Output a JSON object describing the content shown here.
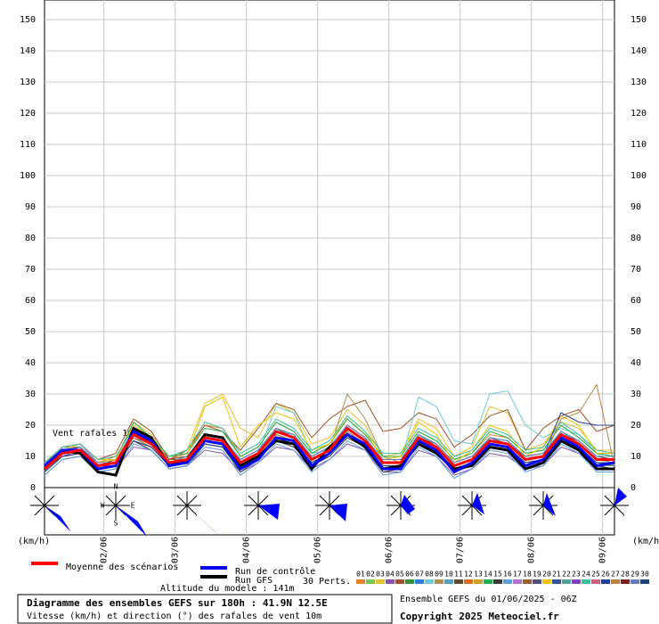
{
  "chart_data": {
    "type": "line",
    "title": "Diagramme des ensembles GEFS sur 180h : 41.9N 12.5E",
    "subtitle": "Vitesse (km/h) et direction (°) des rafales de vent 10m",
    "altitude": "Altitude du modele : 141m",
    "run": "Ensemble GEFS du 01/06/2025 - 06Z",
    "copyright": "Copyright 2025 Meteociel.fr",
    "annotation": "Vent rafales 10m",
    "unit": "(km/h)",
    "perts_label": "30 Perts.",
    "compass": [
      "N",
      "E",
      "S",
      "W"
    ],
    "xlim": [
      0,
      192
    ],
    "xticks": [
      {
        "value": 20,
        "label": "02/06"
      },
      {
        "value": 44,
        "label": "03/06"
      },
      {
        "value": 68,
        "label": "04/06"
      },
      {
        "value": 92,
        "label": "05/06"
      },
      {
        "value": 116,
        "label": "06/06"
      },
      {
        "value": 140,
        "label": "07/06"
      },
      {
        "value": 164,
        "label": "08/06"
      },
      {
        "value": 188,
        "label": "09/06"
      }
    ],
    "ylim": [
      0,
      150
    ],
    "yticks": [
      0,
      10,
      20,
      30,
      40,
      50,
      60,
      70,
      80,
      90,
      100,
      110,
      120,
      130,
      140,
      150
    ],
    "grid": true,
    "x": [
      0,
      6,
      12,
      18,
      24,
      30,
      36,
      42,
      48,
      54,
      60,
      66,
      72,
      78,
      84,
      90,
      96,
      102,
      108,
      114,
      120,
      126,
      132,
      138,
      144,
      150,
      156,
      162,
      168,
      174,
      180,
      186,
      192
    ],
    "perturbations": [
      {
        "name": "01",
        "color": "#e8802c",
        "values": [
          7,
          13,
          13,
          8,
          10,
          19,
          16,
          9,
          11,
          20,
          19,
          10,
          13,
          21,
          18,
          11,
          14,
          22,
          17,
          10,
          10,
          18,
          15,
          9,
          11,
          17,
          16,
          11,
          12,
          20,
          16,
          11,
          11
        ]
      },
      {
        "name": "02",
        "color": "#7cc35a",
        "values": [
          5,
          10,
          11,
          6,
          7,
          15,
          13,
          7,
          8,
          14,
          13,
          6,
          9,
          15,
          14,
          8,
          10,
          16,
          13,
          6,
          7,
          14,
          11,
          5,
          7,
          13,
          12,
          8,
          8,
          15,
          12,
          7,
          7
        ]
      },
      {
        "name": "03",
        "color": "#e4c22c",
        "values": [
          6,
          12,
          14,
          9,
          9,
          21,
          17,
          10,
          12,
          27,
          30,
          19,
          16,
          27,
          24,
          14,
          16,
          25,
          20,
          10,
          11,
          22,
          19,
          10,
          13,
          26,
          24,
          12,
          14,
          21,
          19,
          12,
          12
        ]
      },
      {
        "name": "04",
        "color": "#8a53b0",
        "values": [
          4,
          9,
          10,
          5,
          6,
          13,
          12,
          6,
          7,
          12,
          11,
          5,
          8,
          13,
          12,
          6,
          9,
          14,
          12,
          5,
          5,
          12,
          10,
          4,
          6,
          11,
          10,
          6,
          7,
          13,
          11,
          6,
          6
        ]
      },
      {
        "name": "05",
        "color": "#a0522d",
        "values": [
          8,
          13,
          14,
          9,
          11,
          22,
          18,
          9,
          12,
          20,
          18,
          12,
          19,
          27,
          25,
          16,
          22,
          26,
          28,
          18,
          19,
          24,
          22,
          13,
          17,
          23,
          25,
          12,
          19,
          23,
          25,
          18,
          20
        ]
      },
      {
        "name": "06",
        "color": "#3a8d3a",
        "values": [
          6,
          11,
          13,
          7,
          8,
          18,
          15,
          8,
          10,
          17,
          16,
          9,
          12,
          19,
          17,
          10,
          13,
          20,
          16,
          9,
          9,
          17,
          14,
          8,
          10,
          16,
          15,
          10,
          11,
          18,
          15,
          10,
          10
        ]
      },
      {
        "name": "07",
        "color": "#2d7fe0",
        "values": [
          5,
          12,
          12,
          7,
          9,
          16,
          13,
          7,
          8,
          14,
          13,
          6,
          10,
          17,
          15,
          8,
          11,
          18,
          14,
          7,
          7,
          15,
          12,
          6,
          8,
          14,
          13,
          8,
          9,
          16,
          13,
          8,
          8
        ]
      },
      {
        "name": "08",
        "color": "#6ec9d8",
        "values": [
          7,
          13,
          12,
          6,
          8,
          17,
          14,
          8,
          9,
          16,
          15,
          7,
          11,
          26,
          24,
          11,
          12,
          20,
          16,
          8,
          8,
          29,
          26,
          15,
          14,
          30,
          31,
          20,
          16,
          19,
          17,
          11,
          7
        ]
      },
      {
        "name": "09",
        "color": "#b38e50",
        "values": [
          6,
          10,
          11,
          7,
          7,
          16,
          14,
          8,
          9,
          15,
          14,
          8,
          10,
          16,
          15,
          9,
          12,
          30,
          22,
          10,
          8,
          15,
          13,
          7,
          9,
          15,
          14,
          9,
          10,
          16,
          14,
          9,
          8
        ]
      },
      {
        "name": "10",
        "color": "#4f9fbf",
        "values": [
          5,
          11,
          12,
          8,
          8,
          17,
          15,
          7,
          9,
          17,
          16,
          8,
          11,
          18,
          17,
          9,
          12,
          19,
          15,
          8,
          8,
          17,
          13,
          7,
          9,
          16,
          15,
          9,
          10,
          18,
          14,
          9,
          9
        ]
      },
      {
        "name": "11",
        "color": "#5e4a2e",
        "values": [
          7,
          12,
          13,
          7,
          9,
          18,
          15,
          9,
          10,
          16,
          15,
          9,
          12,
          19,
          16,
          10,
          13,
          20,
          16,
          9,
          9,
          16,
          14,
          8,
          10,
          16,
          14,
          10,
          11,
          17,
          15,
          10,
          9
        ]
      },
      {
        "name": "12",
        "color": "#e86a1c",
        "values": [
          6,
          11,
          12,
          6,
          7,
          16,
          13,
          7,
          8,
          15,
          14,
          7,
          10,
          17,
          15,
          8,
          11,
          18,
          14,
          7,
          7,
          15,
          12,
          6,
          8,
          14,
          13,
          8,
          9,
          16,
          13,
          8,
          8
        ]
      },
      {
        "name": "13",
        "color": "#c9a227",
        "values": [
          5,
          12,
          12,
          7,
          8,
          17,
          14,
          8,
          9,
          16,
          15,
          8,
          11,
          18,
          16,
          9,
          12,
          19,
          15,
          8,
          8,
          16,
          13,
          7,
          9,
          15,
          14,
          9,
          10,
          17,
          14,
          9,
          9
        ]
      },
      {
        "name": "14",
        "color": "#20b050",
        "values": [
          8,
          12,
          13,
          8,
          9,
          21,
          16,
          10,
          11,
          19,
          18,
          10,
          13,
          21,
          18,
          11,
          14,
          22,
          17,
          10,
          10,
          18,
          15,
          9,
          11,
          18,
          16,
          11,
          12,
          20,
          16,
          11,
          10
        ]
      },
      {
        "name": "15",
        "color": "#3a3a3a",
        "values": [
          6,
          10,
          11,
          6,
          7,
          15,
          12,
          6,
          7,
          14,
          13,
          5,
          9,
          15,
          13,
          7,
          10,
          16,
          13,
          5,
          6,
          14,
          11,
          5,
          7,
          13,
          12,
          6,
          8,
          15,
          12,
          7,
          6
        ]
      },
      {
        "name": "16",
        "color": "#5aa0e0",
        "values": [
          4,
          9,
          10,
          5,
          6,
          14,
          12,
          6,
          7,
          13,
          12,
          4,
          8,
          14,
          12,
          5,
          9,
          15,
          12,
          4,
          5,
          13,
          10,
          3,
          6,
          12,
          11,
          5,
          7,
          14,
          11,
          5,
          5
        ]
      },
      {
        "name": "17",
        "color": "#b070d0",
        "values": [
          6,
          13,
          14,
          8,
          9,
          18,
          15,
          8,
          10,
          17,
          16,
          9,
          12,
          19,
          17,
          10,
          13,
          20,
          16,
          9,
          9,
          17,
          14,
          8,
          10,
          16,
          15,
          10,
          11,
          18,
          15,
          10,
          10
        ]
      },
      {
        "name": "18",
        "color": "#9c5c2c",
        "values": [
          7,
          12,
          12,
          7,
          8,
          17,
          15,
          9,
          9,
          16,
          15,
          8,
          11,
          18,
          16,
          9,
          12,
          19,
          15,
          8,
          8,
          16,
          13,
          7,
          9,
          15,
          14,
          9,
          10,
          17,
          14,
          9,
          9
        ]
      },
      {
        "name": "19",
        "color": "#505080",
        "values": [
          5,
          11,
          11,
          6,
          7,
          16,
          13,
          7,
          8,
          15,
          14,
          7,
          10,
          17,
          15,
          8,
          11,
          18,
          14,
          7,
          7,
          15,
          12,
          6,
          8,
          14,
          13,
          8,
          9,
          16,
          13,
          8,
          7
        ]
      },
      {
        "name": "20",
        "color": "#f0c000",
        "values": [
          6,
          12,
          13,
          8,
          9,
          20,
          16,
          8,
          10,
          26,
          29,
          13,
          20,
          24,
          22,
          12,
          14,
          23,
          18,
          9,
          10,
          21,
          17,
          8,
          12,
          20,
          18,
          10,
          13,
          23,
          20,
          11,
          11
        ]
      },
      {
        "name": "21",
        "color": "#3050a0",
        "values": [
          7,
          11,
          12,
          7,
          8,
          17,
          14,
          8,
          9,
          16,
          15,
          8,
          11,
          18,
          16,
          9,
          12,
          19,
          15,
          8,
          8,
          16,
          13,
          7,
          9,
          15,
          14,
          9,
          10,
          17,
          14,
          9,
          9
        ]
      },
      {
        "name": "22",
        "color": "#50a0a0",
        "values": [
          6,
          12,
          12,
          6,
          8,
          16,
          14,
          7,
          9,
          15,
          14,
          7,
          10,
          17,
          15,
          8,
          11,
          18,
          14,
          7,
          7,
          15,
          12,
          6,
          8,
          14,
          13,
          8,
          9,
          16,
          13,
          8,
          8
        ]
      },
      {
        "name": "23",
        "color": "#8040c0",
        "values": [
          5,
          10,
          12,
          7,
          7,
          17,
          15,
          8,
          9,
          16,
          15,
          8,
          11,
          18,
          16,
          9,
          12,
          19,
          15,
          8,
          8,
          16,
          13,
          7,
          9,
          15,
          14,
          9,
          10,
          17,
          14,
          9,
          9
        ]
      },
      {
        "name": "24",
        "color": "#40c0a0",
        "values": [
          8,
          13,
          14,
          9,
          10,
          19,
          16,
          10,
          12,
          21,
          19,
          11,
          14,
          22,
          19,
          12,
          15,
          23,
          18,
          11,
          11,
          19,
          16,
          10,
          12,
          19,
          17,
          12,
          13,
          21,
          17,
          12,
          11
        ]
      },
      {
        "name": "25",
        "color": "#d06080",
        "values": [
          6,
          11,
          12,
          7,
          8,
          17,
          14,
          8,
          9,
          16,
          15,
          8,
          11,
          18,
          16,
          9,
          12,
          19,
          15,
          8,
          8,
          16,
          13,
          7,
          9,
          15,
          14,
          9,
          10,
          17,
          14,
          9,
          9
        ]
      },
      {
        "name": "26",
        "color": "#2040a0",
        "values": [
          7,
          12,
          13,
          7,
          8,
          17,
          14,
          8,
          9,
          16,
          15,
          8,
          11,
          18,
          16,
          9,
          12,
          19,
          15,
          8,
          8,
          16,
          13,
          7,
          9,
          15,
          14,
          9,
          10,
          24,
          21,
          20,
          20
        ]
      },
      {
        "name": "27",
        "color": "#c08040",
        "values": [
          5,
          11,
          11,
          6,
          7,
          16,
          13,
          7,
          8,
          15,
          14,
          7,
          10,
          17,
          15,
          8,
          11,
          18,
          14,
          7,
          7,
          15,
          12,
          6,
          8,
          14,
          13,
          8,
          9,
          22,
          24,
          33,
          7
        ]
      },
      {
        "name": "28",
        "color": "#802020",
        "values": [
          6,
          12,
          12,
          7,
          8,
          17,
          14,
          8,
          9,
          16,
          15,
          8,
          11,
          18,
          16,
          9,
          12,
          19,
          15,
          8,
          8,
          16,
          13,
          7,
          9,
          15,
          14,
          9,
          10,
          17,
          14,
          9,
          9
        ]
      },
      {
        "name": "29",
        "color": "#6080c0",
        "values": [
          6,
          11,
          13,
          8,
          8,
          18,
          15,
          8,
          10,
          17,
          16,
          9,
          12,
          19,
          17,
          10,
          13,
          20,
          16,
          9,
          9,
          17,
          14,
          8,
          10,
          16,
          15,
          10,
          11,
          18,
          15,
          10,
          10
        ]
      },
      {
        "name": "30",
        "color": "#204080",
        "values": [
          5,
          10,
          11,
          6,
          7,
          15,
          13,
          7,
          8,
          14,
          13,
          7,
          10,
          16,
          14,
          8,
          11,
          17,
          13,
          7,
          7,
          14,
          12,
          6,
          8,
          14,
          13,
          8,
          9,
          15,
          13,
          8,
          8
        ]
      }
    ],
    "series": [
      {
        "name": "Run GFS",
        "color": "#000000",
        "values": [
          6,
          12,
          11,
          5,
          4,
          19,
          16,
          7,
          9,
          17,
          16,
          7,
          10,
          15,
          14,
          6,
          13,
          17,
          13,
          6,
          7,
          14,
          11,
          6,
          7,
          13,
          12,
          6,
          8,
          15,
          12,
          6,
          6
        ]
      },
      {
        "name": "Run de contrôle",
        "color": "#0000ff",
        "values": [
          7,
          12,
          12,
          6,
          7,
          18,
          15,
          7,
          8,
          15,
          14,
          6,
          9,
          16,
          15,
          7,
          11,
          17,
          14,
          6,
          6,
          15,
          12,
          5,
          8,
          14,
          13,
          7,
          9,
          16,
          13,
          7,
          8
        ]
      },
      {
        "name": "Moyenne des scénarios",
        "color": "#ff0000",
        "values": [
          6,
          11,
          12,
          7,
          8,
          17,
          14,
          8,
          9,
          16,
          15,
          8,
          11,
          18,
          16,
          9,
          12,
          19,
          15,
          8,
          8,
          16,
          13,
          7,
          9,
          15,
          14,
          9,
          10,
          17,
          14,
          9,
          9
        ]
      }
    ]
  }
}
